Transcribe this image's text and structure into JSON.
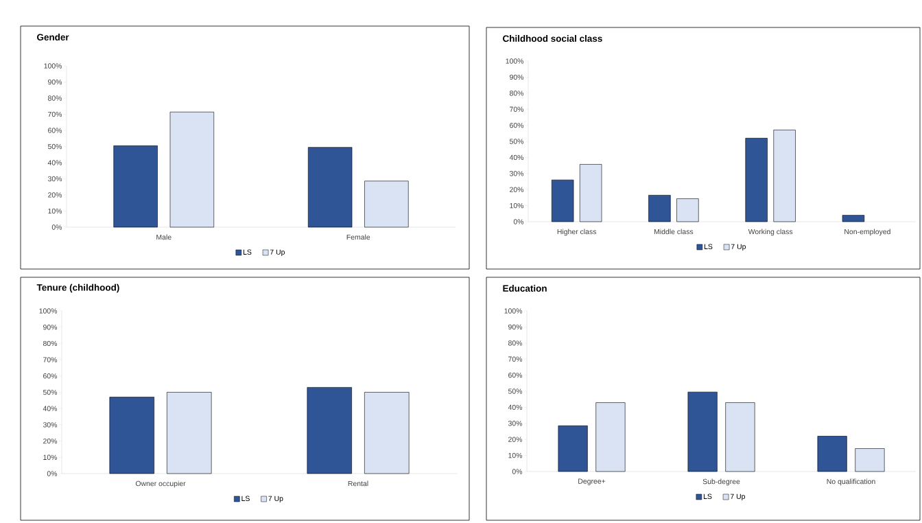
{
  "chart_data": [
    {
      "type": "bar",
      "title": "Gender",
      "categories": [
        "Male",
        "Female"
      ],
      "series": [
        {
          "name": "LS",
          "color": "#2f5597",
          "values": [
            50.5,
            49.5
          ]
        },
        {
          "name": "7 Up",
          "color": "#dae3f3",
          "values": [
            71.4,
            28.6
          ]
        }
      ],
      "ylim": [
        0,
        100
      ],
      "yticks": [
        {
          "value": 0,
          "label": "0%"
        },
        {
          "value": 10,
          "label": "10%"
        },
        {
          "value": 20,
          "label": "20%"
        },
        {
          "value": 30,
          "label": "30%"
        },
        {
          "value": 40,
          "label": "40%"
        },
        {
          "value": 50,
          "label": "50%"
        },
        {
          "value": 60,
          "label": "60%"
        },
        {
          "value": 70,
          "label": "70%"
        },
        {
          "value": 80,
          "label": "80%"
        },
        {
          "value": 90,
          "label": "90%"
        },
        {
          "value": 100,
          "label": "100%"
        }
      ],
      "legend": "bottom"
    },
    {
      "type": "bar",
      "title": "Childhood social class",
      "categories": [
        "Higher class",
        "Middle class",
        "Working class",
        "Non-employed"
      ],
      "series": [
        {
          "name": "LS",
          "color": "#2f5597",
          "values": [
            26,
            16.5,
            52,
            4
          ]
        },
        {
          "name": "7 Up",
          "color": "#dae3f3",
          "values": [
            35.7,
            14.3,
            57.1,
            null
          ]
        }
      ],
      "ylim": [
        0,
        100
      ],
      "yticks": [
        {
          "value": 0,
          "label": "0%"
        },
        {
          "value": 10,
          "label": "10%"
        },
        {
          "value": 20,
          "label": "20%"
        },
        {
          "value": 30,
          "label": "30%"
        },
        {
          "value": 40,
          "label": "40%"
        },
        {
          "value": 50,
          "label": "50%"
        },
        {
          "value": 60,
          "label": "60%"
        },
        {
          "value": 70,
          "label": "70%"
        },
        {
          "value": 80,
          "label": "80%"
        },
        {
          "value": 90,
          "label": "90%"
        },
        {
          "value": 100,
          "label": "100%"
        }
      ],
      "legend": "bottom"
    },
    {
      "type": "bar",
      "title": "Tenure (childhood)",
      "categories": [
        "Owner occupier",
        "Rental"
      ],
      "series": [
        {
          "name": "LS",
          "color": "#2f5597",
          "values": [
            47,
            53
          ]
        },
        {
          "name": "7 Up",
          "color": "#dae3f3",
          "values": [
            50,
            50
          ]
        }
      ],
      "ylim": [
        0,
        100
      ],
      "yticks": [
        {
          "value": 0,
          "label": "0%"
        },
        {
          "value": 10,
          "label": "10%"
        },
        {
          "value": 20,
          "label": "20%"
        },
        {
          "value": 30,
          "label": "30%"
        },
        {
          "value": 40,
          "label": "40%"
        },
        {
          "value": 50,
          "label": "50%"
        },
        {
          "value": 60,
          "label": "60%"
        },
        {
          "value": 70,
          "label": "70%"
        },
        {
          "value": 80,
          "label": "80%"
        },
        {
          "value": 90,
          "label": "90%"
        },
        {
          "value": 100,
          "label": "100%"
        }
      ],
      "legend": "bottom"
    },
    {
      "type": "bar",
      "title": "Education",
      "categories": [
        "Degree+",
        "Sub-degree",
        "No qualification"
      ],
      "series": [
        {
          "name": "LS",
          "color": "#2f5597",
          "values": [
            28.5,
            49.5,
            22
          ]
        },
        {
          "name": "7 Up",
          "color": "#dae3f3",
          "values": [
            42.9,
            42.9,
            14.3
          ]
        }
      ],
      "ylim": [
        0,
        100
      ],
      "yticks": [
        {
          "value": 0,
          "label": "0%"
        },
        {
          "value": 10,
          "label": "10%"
        },
        {
          "value": 20,
          "label": "20%"
        },
        {
          "value": 30,
          "label": "30%"
        },
        {
          "value": 40,
          "label": "40%"
        },
        {
          "value": 50,
          "label": "50%"
        },
        {
          "value": 60,
          "label": "60%"
        },
        {
          "value": 70,
          "label": "70%"
        },
        {
          "value": 80,
          "label": "80%"
        },
        {
          "value": 90,
          "label": "90%"
        },
        {
          "value": 100,
          "label": "100%"
        }
      ],
      "legend": "bottom"
    }
  ]
}
